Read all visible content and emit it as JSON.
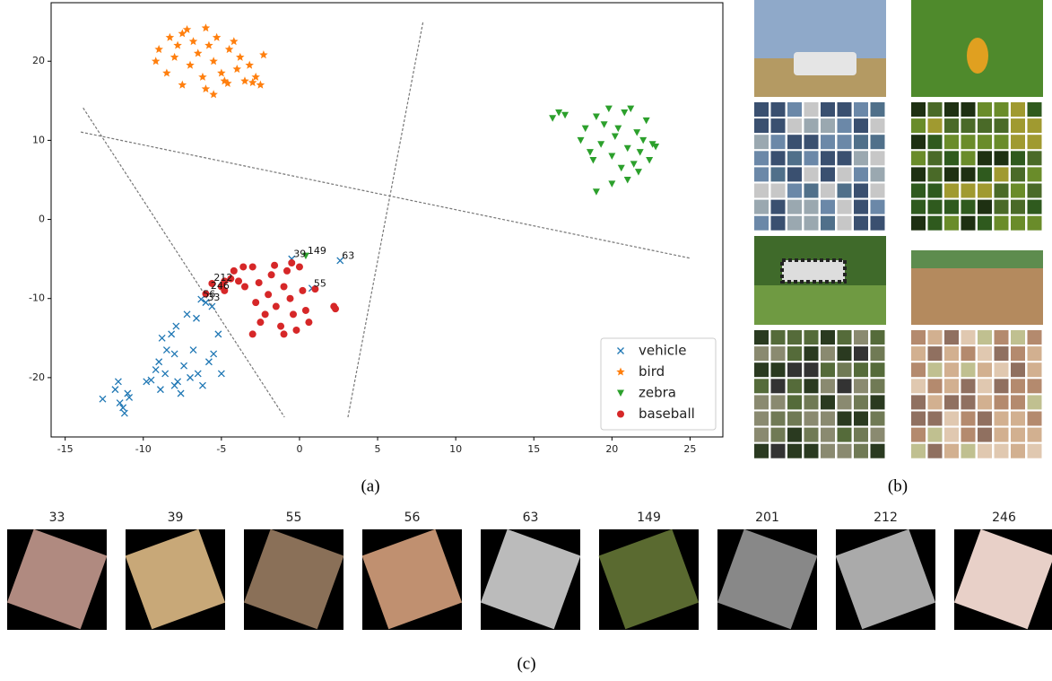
{
  "chart_data": {
    "type": "scatter",
    "xlim": [
      -15.9,
      27.1
    ],
    "xticks": [
      -15,
      -10,
      -5,
      0,
      5,
      10,
      15,
      20,
      25
    ],
    "ylim": [
      -27.5,
      27.4
    ],
    "yticks": [
      -20,
      -10,
      0,
      10,
      20
    ],
    "legend": "lower right",
    "series": [
      {
        "name": "vehicle",
        "color": "#1f77b4",
        "marker": "x",
        "x": [
          -12.6,
          -11.8,
          -11.6,
          -11.5,
          -11.2,
          -11.0,
          -11.3,
          -10.9,
          -9.8,
          -9.5,
          -9.0,
          -8.8,
          -8.5,
          -8.6,
          -8.9,
          -8.2,
          -8.0,
          -7.8,
          -7.6,
          -7.4,
          -7.0,
          -6.8,
          -6.5,
          -6.2,
          -5.8,
          -5.5,
          -5.2,
          -5.0,
          -7.9,
          -7.2,
          -6.6,
          -5.6,
          -6.0,
          -6.3,
          -0.5,
          2.6,
          0.8,
          -8.0,
          -9.2
        ],
        "values": [
          -22.7,
          -21.5,
          -20.5,
          -23.2,
          -24.5,
          -22.0,
          -23.8,
          -22.5,
          -20.5,
          -20.3,
          -18.0,
          -15.0,
          -16.5,
          -19.5,
          -21.5,
          -14.5,
          -17.0,
          -20.5,
          -22.0,
          -18.5,
          -20.0,
          -16.5,
          -19.5,
          -21.0,
          -18.0,
          -17.0,
          -14.5,
          -19.5,
          -13.5,
          -12.0,
          -12.5,
          -11.0,
          -10.5,
          -10.1,
          -5.0,
          -5.2,
          -8.7,
          -21.0,
          -19.0
        ]
      },
      {
        "name": "bird",
        "color": "#ff7f0e",
        "marker": "star",
        "x": [
          -9.2,
          -9.0,
          -8.5,
          -8.0,
          -7.8,
          -7.5,
          -7.2,
          -7.0,
          -6.8,
          -6.5,
          -6.2,
          -6.0,
          -5.8,
          -5.5,
          -5.3,
          -5.0,
          -4.8,
          -4.5,
          -4.2,
          -4.0,
          -3.8,
          -3.5,
          -3.2,
          -2.8,
          -2.5,
          -2.3,
          -6.0,
          -5.5,
          -7.5,
          -8.3,
          -3.0,
          -4.6
        ],
        "values": [
          20.0,
          21.5,
          18.5,
          20.5,
          22.0,
          23.5,
          24.0,
          19.5,
          22.5,
          21.0,
          18.0,
          24.2,
          22.0,
          20.0,
          23.0,
          18.5,
          17.5,
          21.5,
          22.5,
          19.0,
          20.5,
          17.5,
          19.5,
          18.0,
          17.0,
          20.8,
          16.5,
          15.8,
          17.0,
          23.0,
          17.3,
          17.2
        ]
      },
      {
        "name": "zebra",
        "color": "#2ca02c",
        "marker": "triangle_down",
        "x": [
          16.2,
          16.6,
          17.0,
          18.0,
          18.3,
          18.6,
          18.8,
          19.0,
          19.3,
          19.5,
          19.8,
          20.0,
          20.2,
          20.4,
          20.6,
          20.8,
          21.0,
          21.2,
          21.4,
          21.6,
          21.8,
          22.0,
          22.2,
          22.4,
          22.6,
          21.0,
          20.0,
          19.0,
          21.7,
          22.8,
          0.4
        ],
        "values": [
          12.8,
          13.5,
          13.2,
          10.0,
          11.5,
          8.5,
          7.5,
          13.0,
          9.5,
          12.0,
          14.0,
          8.0,
          10.5,
          11.5,
          6.5,
          13.5,
          9.0,
          14.0,
          7.0,
          11.0,
          8.5,
          10.0,
          12.5,
          7.5,
          9.5,
          5.0,
          4.5,
          3.5,
          6.0,
          9.2,
          -4.6
        ]
      },
      {
        "name": "baseball",
        "color": "#d62728",
        "marker": "circle",
        "x": [
          -6.0,
          -5.6,
          -5.0,
          -4.8,
          -4.4,
          -4.2,
          -3.6,
          -3.5,
          -3.0,
          -2.8,
          -2.6,
          -2.5,
          -2.2,
          -2.0,
          -1.8,
          -1.5,
          -1.2,
          -1.0,
          -0.8,
          -0.6,
          -0.4,
          -0.2,
          0.0,
          0.2,
          0.4,
          0.6,
          -1.0,
          -3.0,
          2.2,
          2.3,
          -3.9,
          -0.5,
          -1.6,
          1.0,
          -4.8
        ],
        "values": [
          -9.4,
          -8.1,
          -8.5,
          -9.0,
          -7.5,
          -6.5,
          -6.0,
          -8.5,
          -6.0,
          -10.5,
          -8.0,
          -13.0,
          -12.0,
          -9.5,
          -7.0,
          -11.0,
          -13.5,
          -8.5,
          -6.5,
          -10.0,
          -12.0,
          -14.0,
          -6.0,
          -9.0,
          -11.5,
          -13.0,
          -14.5,
          -14.5,
          -11.0,
          -11.3,
          -7.8,
          -5.5,
          -5.8,
          -8.8,
          -7.8
        ]
      }
    ],
    "boundaries": [
      {
        "x": [
          -14,
          25
        ],
        "y": [
          11.05,
          -4.9
        ]
      },
      {
        "x": [
          -13.85,
          -0.96
        ],
        "y": [
          14.1,
          -25
        ]
      },
      {
        "x": [
          7.9,
          3.1
        ],
        "y": [
          24.9,
          -25
        ]
      }
    ],
    "annotations": [
      {
        "text": "39",
        "x": -0.5,
        "y": -5.0
      },
      {
        "text": "149",
        "x": 0.4,
        "y": -4.6
      },
      {
        "text": "63",
        "x": 2.6,
        "y": -5.2
      },
      {
        "text": "212",
        "x": -5.6,
        "y": -8.0
      },
      {
        "text": "246",
        "x": -5.8,
        "y": -9.0
      },
      {
        "text": "56",
        "x": -6.3,
        "y": -10.1
      },
      {
        "text": "33",
        "x": -6.0,
        "y": -10.5
      },
      {
        "text": "55",
        "x": 0.8,
        "y": -8.7
      }
    ],
    "caption": "(a)"
  },
  "panel_b": {
    "caption": "(b)"
  },
  "panel_c": {
    "caption": "(c)",
    "labels": [
      "33",
      "39",
      "55",
      "56",
      "63",
      "149",
      "201",
      "212",
      "246"
    ]
  }
}
